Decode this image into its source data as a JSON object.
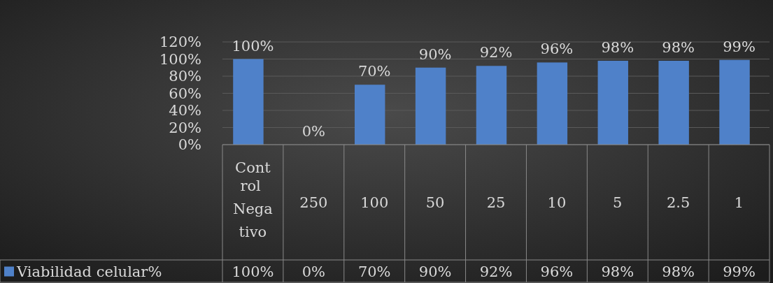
{
  "chart_data": {
    "type": "bar",
    "categories": [
      "Control Negativo",
      "250",
      "100",
      "50",
      "25",
      "10",
      "5",
      "2.5",
      "1"
    ],
    "series": [
      {
        "name": "Viabilidad celular%",
        "color": "#4f81c9",
        "values": [
          100,
          0,
          70,
          90,
          92,
          96,
          98,
          98,
          99
        ],
        "value_labels": [
          "100%",
          "0%",
          "70%",
          "90%",
          "92%",
          "96%",
          "98%",
          "98%",
          "99%"
        ]
      }
    ],
    "ylim": [
      0,
      120
    ],
    "yticks": [
      {
        "value": 0,
        "label": "0%"
      },
      {
        "value": 20,
        "label": "20%"
      },
      {
        "value": 40,
        "label": "40%"
      },
      {
        "value": 60,
        "label": "60%"
      },
      {
        "value": 80,
        "label": "80%"
      },
      {
        "value": 100,
        "label": "100%"
      },
      {
        "value": 120,
        "label": "120%"
      }
    ],
    "grid": "y",
    "legend": "bottom"
  }
}
